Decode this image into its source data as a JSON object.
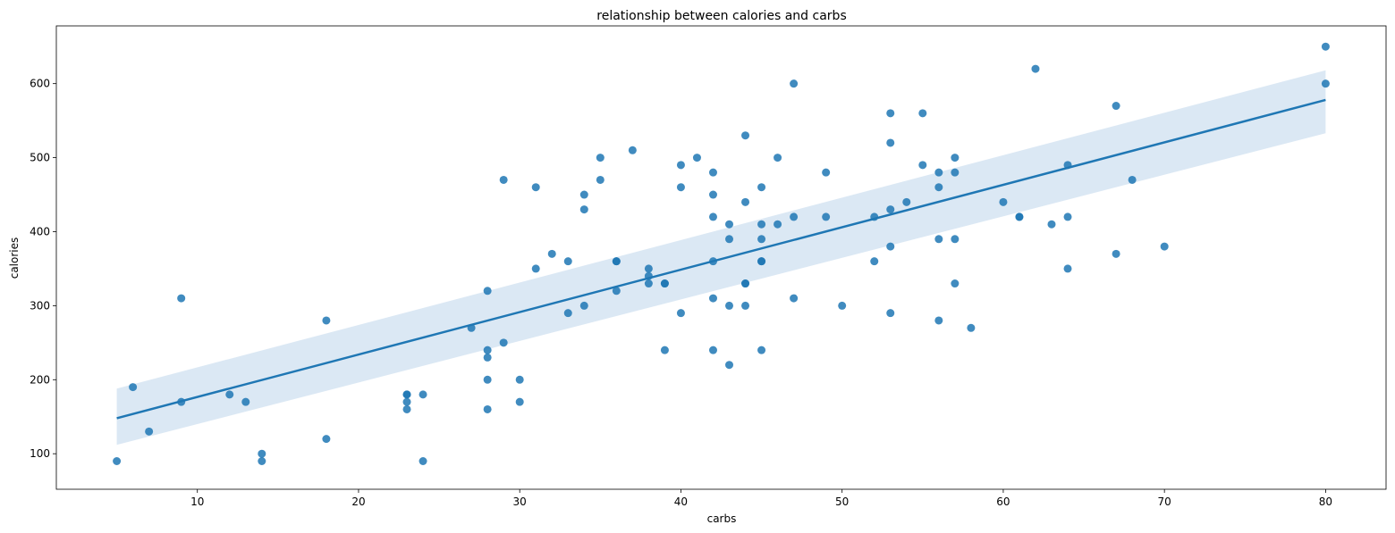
{
  "chart_data": {
    "type": "scatter",
    "title": "relationship between calories and carbs",
    "xlabel": "carbs",
    "ylabel": "calories",
    "xlim": [
      1.25,
      83.75
    ],
    "ylim": [
      52,
      678
    ],
    "xticks": [
      10,
      20,
      30,
      40,
      50,
      60,
      70,
      80
    ],
    "yticks": [
      100,
      200,
      300,
      400,
      500,
      600
    ],
    "colors": {
      "points": "#1f77b4",
      "line": "#1f77b4",
      "band": "#cfe0f0"
    },
    "regression": {
      "x": [
        5,
        80
      ],
      "y": [
        148,
        578
      ],
      "ci_lower": [
        112,
        533
      ],
      "ci_upper": [
        188,
        618
      ]
    },
    "points": [
      [
        5,
        90
      ],
      [
        6,
        190
      ],
      [
        7,
        130
      ],
      [
        9,
        310
      ],
      [
        9,
        170
      ],
      [
        12,
        180
      ],
      [
        13,
        170
      ],
      [
        14,
        100
      ],
      [
        14,
        90
      ],
      [
        18,
        280
      ],
      [
        18,
        120
      ],
      [
        23,
        180
      ],
      [
        23,
        180
      ],
      [
        23,
        170
      ],
      [
        23,
        160
      ],
      [
        24,
        180
      ],
      [
        24,
        90
      ],
      [
        27,
        270
      ],
      [
        28,
        320
      ],
      [
        28,
        240
      ],
      [
        28,
        230
      ],
      [
        28,
        200
      ],
      [
        28,
        160
      ],
      [
        29,
        470
      ],
      [
        29,
        250
      ],
      [
        30,
        200
      ],
      [
        30,
        170
      ],
      [
        31,
        460
      ],
      [
        31,
        350
      ],
      [
        32,
        370
      ],
      [
        33,
        360
      ],
      [
        33,
        290
      ],
      [
        34,
        450
      ],
      [
        34,
        430
      ],
      [
        34,
        300
      ],
      [
        35,
        500
      ],
      [
        35,
        470
      ],
      [
        36,
        360
      ],
      [
        36,
        360
      ],
      [
        36,
        320
      ],
      [
        37,
        510
      ],
      [
        38,
        350
      ],
      [
        38,
        340
      ],
      [
        38,
        330
      ],
      [
        39,
        330
      ],
      [
        39,
        330
      ],
      [
        39,
        240
      ],
      [
        40,
        490
      ],
      [
        40,
        460
      ],
      [
        40,
        290
      ],
      [
        41,
        500
      ],
      [
        42,
        480
      ],
      [
        42,
        450
      ],
      [
        42,
        420
      ],
      [
        42,
        360
      ],
      [
        42,
        310
      ],
      [
        42,
        240
      ],
      [
        43,
        410
      ],
      [
        43,
        390
      ],
      [
        43,
        300
      ],
      [
        43,
        220
      ],
      [
        44,
        530
      ],
      [
        44,
        440
      ],
      [
        44,
        330
      ],
      [
        44,
        330
      ],
      [
        44,
        300
      ],
      [
        45,
        460
      ],
      [
        45,
        410
      ],
      [
        45,
        390
      ],
      [
        45,
        360
      ],
      [
        45,
        360
      ],
      [
        45,
        240
      ],
      [
        46,
        500
      ],
      [
        46,
        410
      ],
      [
        47,
        600
      ],
      [
        47,
        420
      ],
      [
        47,
        310
      ],
      [
        49,
        480
      ],
      [
        49,
        420
      ],
      [
        50,
        300
      ],
      [
        52,
        420
      ],
      [
        52,
        360
      ],
      [
        53,
        560
      ],
      [
        53,
        520
      ],
      [
        53,
        430
      ],
      [
        53,
        380
      ],
      [
        53,
        290
      ],
      [
        54,
        440
      ],
      [
        55,
        560
      ],
      [
        55,
        490
      ],
      [
        56,
        480
      ],
      [
        56,
        460
      ],
      [
        56,
        390
      ],
      [
        56,
        280
      ],
      [
        57,
        500
      ],
      [
        57,
        480
      ],
      [
        57,
        390
      ],
      [
        57,
        330
      ],
      [
        58,
        270
      ],
      [
        60,
        440
      ],
      [
        61,
        420
      ],
      [
        61,
        420
      ],
      [
        62,
        620
      ],
      [
        63,
        410
      ],
      [
        64,
        490
      ],
      [
        64,
        420
      ],
      [
        64,
        350
      ],
      [
        67,
        570
      ],
      [
        67,
        370
      ],
      [
        68,
        470
      ],
      [
        70,
        380
      ],
      [
        80,
        650
      ],
      [
        80,
        600
      ]
    ]
  }
}
